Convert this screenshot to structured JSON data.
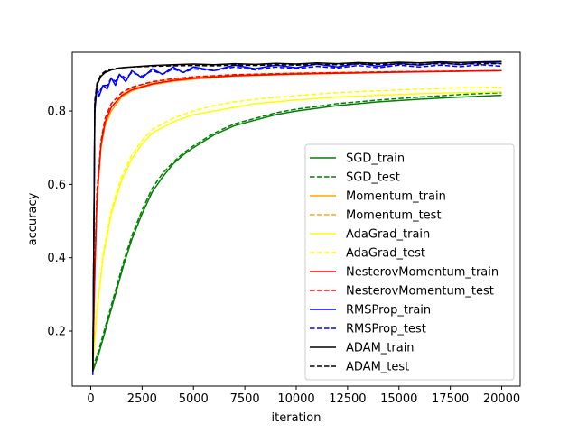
{
  "chart_data": {
    "type": "line",
    "title": "",
    "xlabel": "iteration",
    "ylabel": "accuracy",
    "xlim": [
      -900,
      20900
    ],
    "ylim": [
      0.05,
      0.96
    ],
    "xticks": [
      0,
      2500,
      5000,
      7500,
      10000,
      12500,
      15000,
      17500,
      20000
    ],
    "xtick_labels": [
      "0",
      "2500",
      "5000",
      "7500",
      "10000",
      "12500",
      "15000",
      "17500",
      "20000"
    ],
    "yticks": [
      0.2,
      0.4,
      0.6,
      0.8
    ],
    "ytick_labels": [
      "0.2",
      "0.4",
      "0.6",
      "0.8"
    ],
    "grid": false,
    "legend_position": "lower-right",
    "series": [
      {
        "name": "SGD_train",
        "color": "#008000",
        "dash": "solid",
        "x": [
          100,
          400,
          800,
          1200,
          1600,
          2000,
          2500,
          3000,
          3500,
          4000,
          4500,
          5000,
          6000,
          7000,
          8000,
          9000,
          10000,
          12000,
          14000,
          16000,
          18000,
          20000
        ],
        "y": [
          0.09,
          0.14,
          0.22,
          0.3,
          0.38,
          0.45,
          0.52,
          0.58,
          0.62,
          0.655,
          0.68,
          0.7,
          0.735,
          0.76,
          0.775,
          0.79,
          0.8,
          0.815,
          0.825,
          0.832,
          0.838,
          0.843
        ]
      },
      {
        "name": "SGD_test",
        "color": "#008000",
        "dash": "dashed",
        "x": [
          100,
          400,
          800,
          1200,
          1600,
          2000,
          2500,
          3000,
          3500,
          4000,
          4500,
          5000,
          6000,
          7000,
          8000,
          9000,
          10000,
          12000,
          14000,
          16000,
          18000,
          20000
        ],
        "y": [
          0.1,
          0.15,
          0.23,
          0.31,
          0.39,
          0.46,
          0.53,
          0.59,
          0.63,
          0.66,
          0.685,
          0.705,
          0.74,
          0.765,
          0.78,
          0.795,
          0.805,
          0.82,
          0.83,
          0.838,
          0.845,
          0.85
        ]
      },
      {
        "name": "Momentum_train",
        "color": "#ffa500",
        "dash": "solid",
        "x": [
          100,
          200,
          300,
          500,
          700,
          1000,
          1500,
          2000,
          3000,
          4000,
          5000,
          7000,
          10000,
          15000,
          20000
        ],
        "y": [
          0.1,
          0.35,
          0.55,
          0.7,
          0.76,
          0.8,
          0.838,
          0.855,
          0.872,
          0.881,
          0.887,
          0.895,
          0.9,
          0.906,
          0.91
        ]
      },
      {
        "name": "Momentum_test",
        "color": "#ffa500",
        "dash": "dashed",
        "x": [
          100,
          200,
          300,
          500,
          700,
          1000,
          1500,
          2000,
          3000,
          4000,
          5000,
          7000,
          10000,
          15000,
          20000
        ],
        "y": [
          0.11,
          0.37,
          0.57,
          0.71,
          0.77,
          0.81,
          0.845,
          0.862,
          0.878,
          0.886,
          0.892,
          0.898,
          0.903,
          0.907,
          0.91
        ]
      },
      {
        "name": "AdaGrad_train",
        "color": "#ffff00",
        "dash": "solid",
        "x": [
          100,
          300,
          600,
          1000,
          1500,
          2000,
          2500,
          3000,
          4000,
          5000,
          6000,
          7000,
          8000,
          10000,
          12000,
          14000,
          16000,
          18000,
          20000
        ],
        "y": [
          0.1,
          0.25,
          0.4,
          0.52,
          0.61,
          0.67,
          0.71,
          0.74,
          0.77,
          0.79,
          0.8,
          0.81,
          0.82,
          0.83,
          0.838,
          0.843,
          0.847,
          0.85,
          0.852
        ]
      },
      {
        "name": "AdaGrad_test",
        "color": "#ffff00",
        "dash": "dashed",
        "x": [
          100,
          300,
          600,
          1000,
          1500,
          2000,
          2500,
          3000,
          4000,
          5000,
          6000,
          7000,
          8000,
          10000,
          12000,
          14000,
          16000,
          18000,
          20000
        ],
        "y": [
          0.11,
          0.26,
          0.41,
          0.53,
          0.62,
          0.68,
          0.72,
          0.75,
          0.78,
          0.8,
          0.815,
          0.825,
          0.832,
          0.842,
          0.85,
          0.855,
          0.86,
          0.863,
          0.865
        ]
      },
      {
        "name": "NesterovMomentum_train",
        "color": "#ff0000",
        "dash": "solid",
        "x": [
          100,
          200,
          300,
          500,
          700,
          1000,
          1500,
          2000,
          3000,
          4000,
          5000,
          7000,
          10000,
          15000,
          20000
        ],
        "y": [
          0.1,
          0.36,
          0.56,
          0.71,
          0.77,
          0.81,
          0.842,
          0.858,
          0.874,
          0.883,
          0.889,
          0.896,
          0.901,
          0.906,
          0.91
        ]
      },
      {
        "name": "NesterovMomentum_test",
        "color": "#ff0000",
        "dash": "dashed",
        "x": [
          100,
          200,
          300,
          500,
          700,
          1000,
          1500,
          2000,
          3000,
          4000,
          5000,
          7000,
          10000,
          15000,
          20000
        ],
        "y": [
          0.11,
          0.38,
          0.58,
          0.72,
          0.78,
          0.82,
          0.85,
          0.865,
          0.88,
          0.888,
          0.893,
          0.899,
          0.903,
          0.907,
          0.91
        ]
      },
      {
        "name": "RMSProp_train",
        "color": "#0000ff",
        "dash": "solid",
        "x": [
          100,
          200,
          300,
          400,
          600,
          800,
          1000,
          1200,
          1400,
          1700,
          2000,
          2500,
          3000,
          3500,
          4000,
          4500,
          5000,
          6000,
          7000,
          8000,
          9000,
          10000,
          11000,
          12000,
          13000,
          14000,
          15000,
          16000,
          17000,
          18000,
          19000,
          20000
        ],
        "y": [
          0.08,
          0.8,
          0.86,
          0.84,
          0.87,
          0.86,
          0.89,
          0.87,
          0.9,
          0.88,
          0.91,
          0.89,
          0.915,
          0.9,
          0.92,
          0.905,
          0.92,
          0.91,
          0.925,
          0.915,
          0.925,
          0.918,
          0.928,
          0.92,
          0.93,
          0.922,
          0.93,
          0.925,
          0.932,
          0.926,
          0.933,
          0.93
        ]
      },
      {
        "name": "RMSProp_test",
        "color": "#0000ff",
        "dash": "dashed",
        "x": [
          100,
          200,
          300,
          400,
          600,
          800,
          1000,
          1200,
          1400,
          1700,
          2000,
          2500,
          3000,
          3500,
          4000,
          4500,
          5000,
          6000,
          7000,
          8000,
          9000,
          10000,
          11000,
          12000,
          13000,
          14000,
          15000,
          16000,
          17000,
          18000,
          19000,
          20000
        ],
        "y": [
          0.09,
          0.81,
          0.86,
          0.85,
          0.87,
          0.87,
          0.89,
          0.88,
          0.9,
          0.89,
          0.905,
          0.895,
          0.91,
          0.9,
          0.915,
          0.905,
          0.915,
          0.91,
          0.92,
          0.912,
          0.92,
          0.915,
          0.922,
          0.917,
          0.924,
          0.918,
          0.925,
          0.92,
          0.925,
          0.921,
          0.926,
          0.922
        ]
      },
      {
        "name": "ADAM_train",
        "color": "#000000",
        "dash": "solid",
        "x": [
          100,
          200,
          300,
          500,
          700,
          1000,
          1500,
          2000,
          3000,
          4000,
          5000,
          6000,
          7000,
          8000,
          9000,
          10000,
          11000,
          12000,
          13000,
          14000,
          15000,
          16000,
          17000,
          18000,
          19000,
          20000
        ],
        "y": [
          0.09,
          0.82,
          0.87,
          0.895,
          0.905,
          0.912,
          0.918,
          0.92,
          0.924,
          0.926,
          0.928,
          0.926,
          0.929,
          0.927,
          0.93,
          0.928,
          0.931,
          0.929,
          0.932,
          0.93,
          0.933,
          0.931,
          0.934,
          0.932,
          0.934,
          0.935
        ]
      },
      {
        "name": "ADAM_test",
        "color": "#000000",
        "dash": "dashed",
        "x": [
          100,
          200,
          300,
          500,
          700,
          1000,
          1500,
          2000,
          3000,
          4000,
          5000,
          6000,
          7000,
          8000,
          9000,
          10000,
          11000,
          12000,
          13000,
          14000,
          15000,
          16000,
          17000,
          18000,
          19000,
          20000
        ],
        "y": [
          0.1,
          0.83,
          0.875,
          0.9,
          0.908,
          0.914,
          0.918,
          0.92,
          0.922,
          0.923,
          0.924,
          0.923,
          0.925,
          0.924,
          0.926,
          0.925,
          0.927,
          0.926,
          0.928,
          0.927,
          0.928,
          0.927,
          0.929,
          0.928,
          0.929,
          0.929
        ]
      }
    ]
  }
}
